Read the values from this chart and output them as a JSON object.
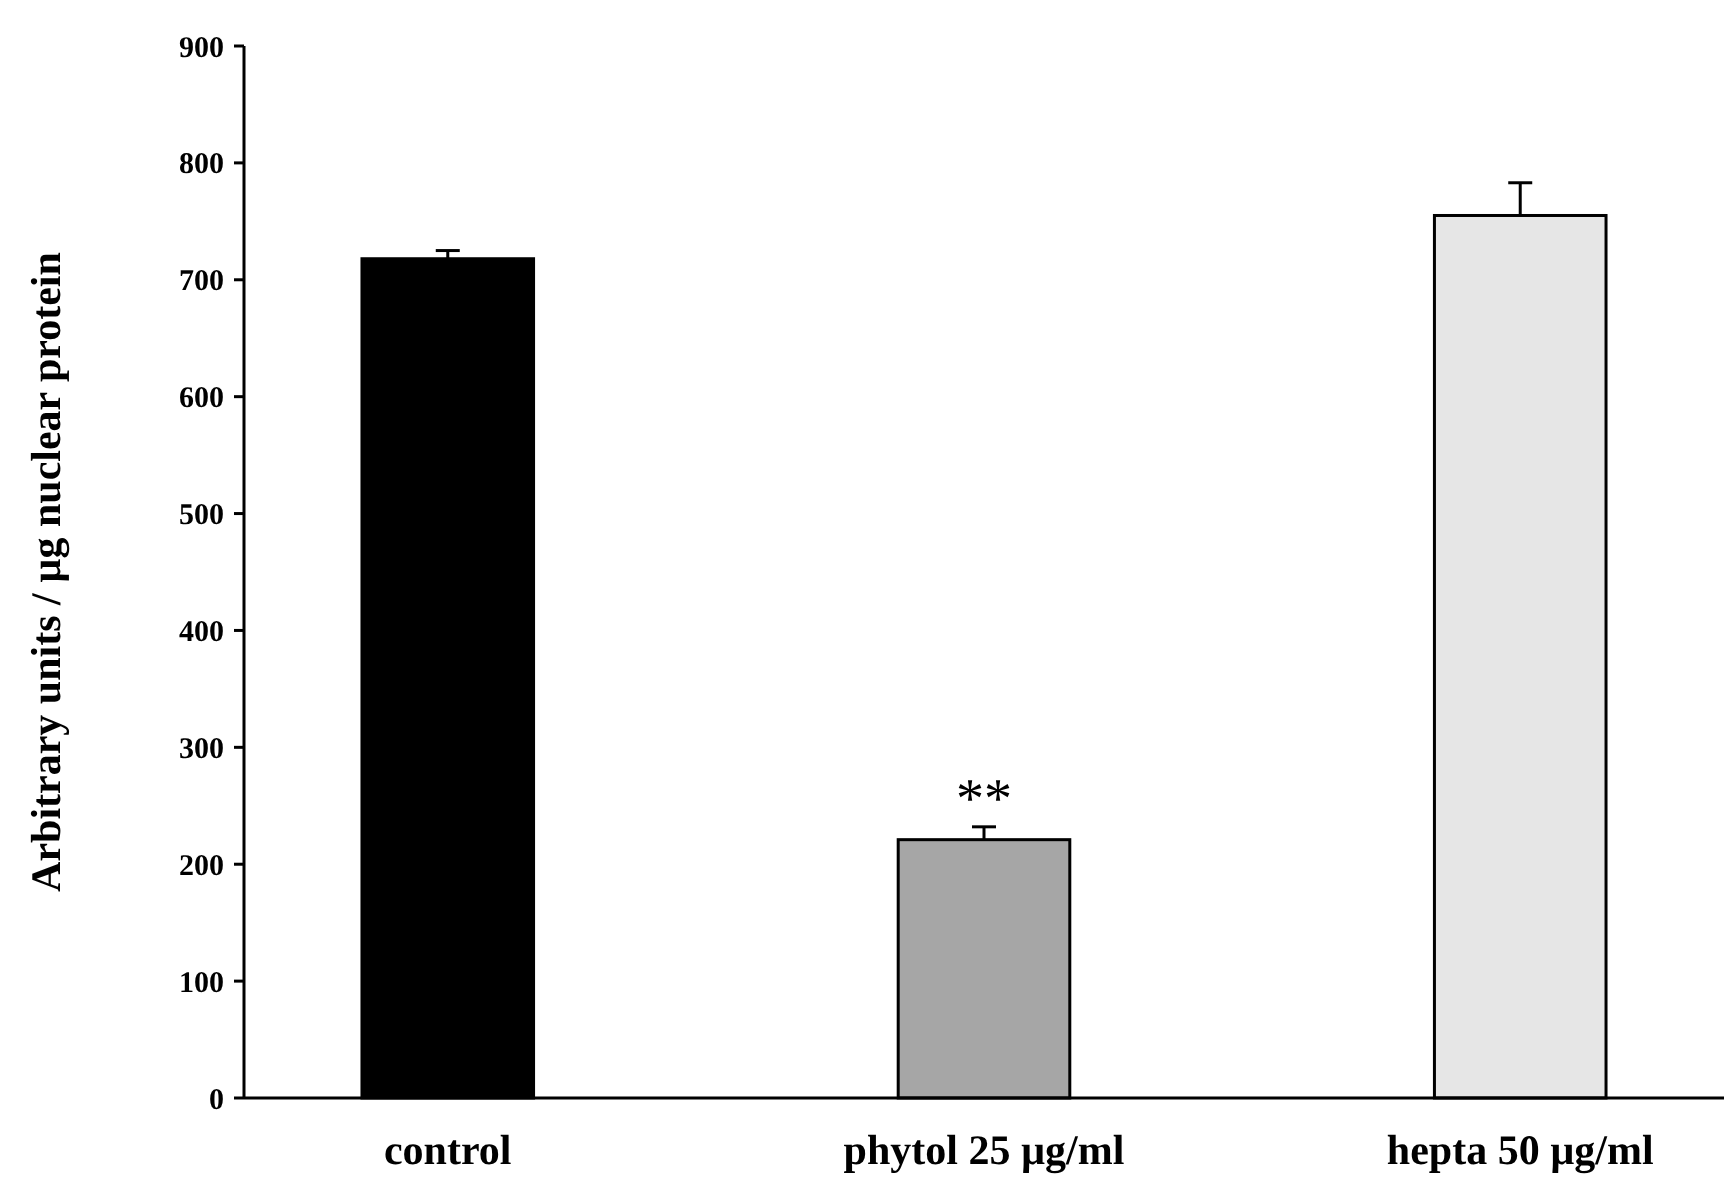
{
  "chart_data": {
    "type": "bar",
    "ylabel": "Arbitrary units / µg nuclear protein",
    "categories": [
      "control",
      "phytol 25 µg/ml",
      "hepta 50 µg/ml"
    ],
    "values": [
      718,
      221,
      755
    ],
    "errors": [
      7,
      11,
      28
    ],
    "colors": [
      "#000000",
      "#a6a6a6",
      "#e6e6e6"
    ],
    "ylim": [
      0,
      900
    ],
    "yticks": [
      0,
      100,
      200,
      300,
      400,
      500,
      600,
      700,
      800,
      900
    ],
    "annotations": [
      {
        "text": "**",
        "x": "phytol 25 µg/ml",
        "y": 240
      }
    ],
    "grid": false
  }
}
